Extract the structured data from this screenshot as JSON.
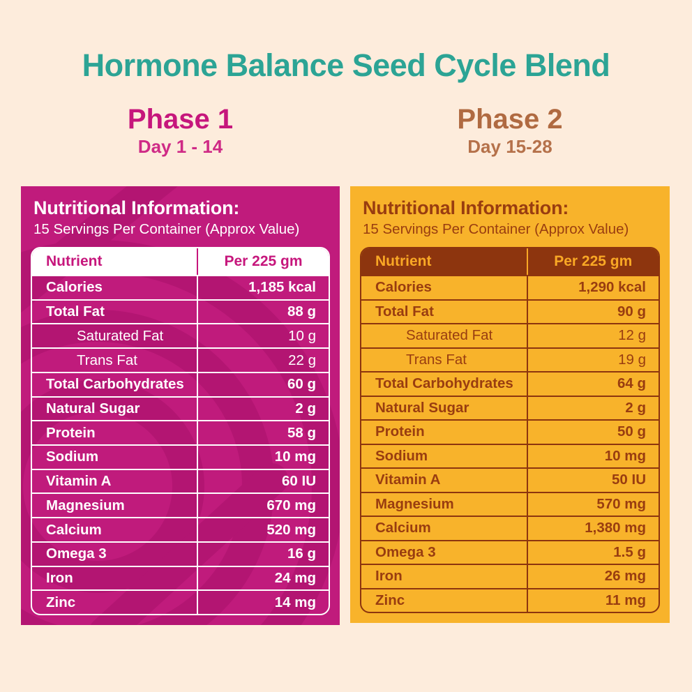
{
  "title": {
    "text": "Hormone Balance Seed Cycle Blend",
    "color": "#2ca495"
  },
  "phases": [
    {
      "name": "Phase 1",
      "days": "Day 1 - 14",
      "color": "#c6167c"
    },
    {
      "name": "Phase 2",
      "days": "Day 15-28",
      "color": "#b06a41"
    }
  ],
  "colors": {
    "background": "#fdecdc",
    "phase1_panel": "#c01b7c",
    "phase1_pattern": "#a9116b",
    "phase2_panel": "#f8b32b",
    "phase2_text": "#993d10",
    "phase2_header_bg": "#8d350e",
    "phase2_header_text": "#f9a825"
  },
  "panels": [
    {
      "id": "phase1",
      "info_title": "Nutritional Information:",
      "info_subtitle": "15 Servings Per Container (Approx Value)",
      "columns": [
        "Nutrient",
        "Per 225 gm"
      ],
      "rows": [
        {
          "label": "Calories",
          "value": "1,185 kcal",
          "indent": false
        },
        {
          "label": "Total Fat",
          "value": "88 g",
          "indent": false
        },
        {
          "label": "Saturated Fat",
          "value": "10 g",
          "indent": true
        },
        {
          "label": "Trans Fat",
          "value": "22 g",
          "indent": true
        },
        {
          "label": "Total Carbohydrates",
          "value": "60 g",
          "indent": false
        },
        {
          "label": "Natural Sugar",
          "value": "2 g",
          "indent": false
        },
        {
          "label": "Protein",
          "value": "58 g",
          "indent": false
        },
        {
          "label": "Sodium",
          "value": "10 mg",
          "indent": false
        },
        {
          "label": "Vitamin A",
          "value": "60 IU",
          "indent": false
        },
        {
          "label": "Magnesium",
          "value": "670 mg",
          "indent": false
        },
        {
          "label": "Calcium",
          "value": "520 mg",
          "indent": false
        },
        {
          "label": "Omega 3",
          "value": "16 g",
          "indent": false
        },
        {
          "label": "Iron",
          "value": "24 mg",
          "indent": false
        },
        {
          "label": "Zinc",
          "value": "14 mg",
          "indent": false
        }
      ]
    },
    {
      "id": "phase2",
      "info_title": "Nutritional Information:",
      "info_subtitle": "15 Servings Per Container (Approx Value)",
      "columns": [
        "Nutrient",
        "Per 225 gm"
      ],
      "rows": [
        {
          "label": "Calories",
          "value": "1,290 kcal",
          "indent": false
        },
        {
          "label": "Total Fat",
          "value": "90 g",
          "indent": false
        },
        {
          "label": "Saturated Fat",
          "value": "12 g",
          "indent": true
        },
        {
          "label": "Trans Fat",
          "value": "19 g",
          "indent": true
        },
        {
          "label": "Total Carbohydrates",
          "value": "64 g",
          "indent": false
        },
        {
          "label": "Natural Sugar",
          "value": "2 g",
          "indent": false
        },
        {
          "label": "Protein",
          "value": "50 g",
          "indent": false
        },
        {
          "label": "Sodium",
          "value": "10 mg",
          "indent": false
        },
        {
          "label": "Vitamin A",
          "value": "50 IU",
          "indent": false
        },
        {
          "label": "Magnesium",
          "value": "570 mg",
          "indent": false
        },
        {
          "label": "Calcium",
          "value": "1,380 mg",
          "indent": false
        },
        {
          "label": "Omega 3",
          "value": "1.5 g",
          "indent": false
        },
        {
          "label": "Iron",
          "value": "26 mg",
          "indent": false
        },
        {
          "label": "Zinc",
          "value": "11 mg",
          "indent": false
        }
      ]
    }
  ]
}
